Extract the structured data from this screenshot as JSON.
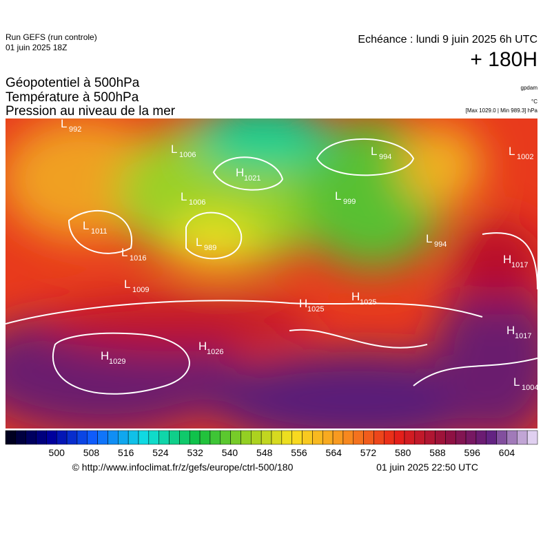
{
  "header": {
    "run": "Run GEFS (run controle)",
    "run_date": "01 juin 2025 18Z",
    "echeance": "Echéance : lundi 9 juin 2025 6h UTC",
    "lead": "+ 180H"
  },
  "titles": [
    "Géopotentiel à 500hPa",
    "Température à 500hPa",
    "Pression au niveau de la mer"
  ],
  "units": {
    "geopotential": "gpdam",
    "temperature": "°C",
    "pressure": "[Max 1029.0 | Min 989.3] hPa"
  },
  "centers": [
    {
      "kind": "L",
      "value": 992
    },
    {
      "kind": "L",
      "value": 1006
    },
    {
      "kind": "H",
      "value": 1021
    },
    {
      "kind": "L",
      "value": 1006
    },
    {
      "kind": "L",
      "value": 989
    },
    {
      "kind": "L",
      "value": 1011
    },
    {
      "kind": "L",
      "value": 1016
    },
    {
      "kind": "L",
      "value": 1009
    },
    {
      "kind": "L",
      "value": 994
    },
    {
      "kind": "L",
      "value": 999
    },
    {
      "kind": "L",
      "value": 994
    },
    {
      "kind": "L",
      "value": 1002
    },
    {
      "kind": "H",
      "value": 1017
    },
    {
      "kind": "H",
      "value": 1025
    },
    {
      "kind": "H",
      "value": 1025
    },
    {
      "kind": "H",
      "value": 1017
    },
    {
      "kind": "L",
      "value": 1004
    },
    {
      "kind": "H",
      "value": 1029
    },
    {
      "kind": "H",
      "value": 1026
    }
  ],
  "colorbar": {
    "ticks": [
      500,
      508,
      516,
      524,
      532,
      540,
      548,
      556,
      564,
      572,
      580,
      588,
      596,
      604
    ]
  },
  "footer": {
    "source": "© http://www.infoclimat.fr/z/gefs/europe/ctrl-500/180",
    "generated": "01 juin 2025 22:50 UTC"
  }
}
